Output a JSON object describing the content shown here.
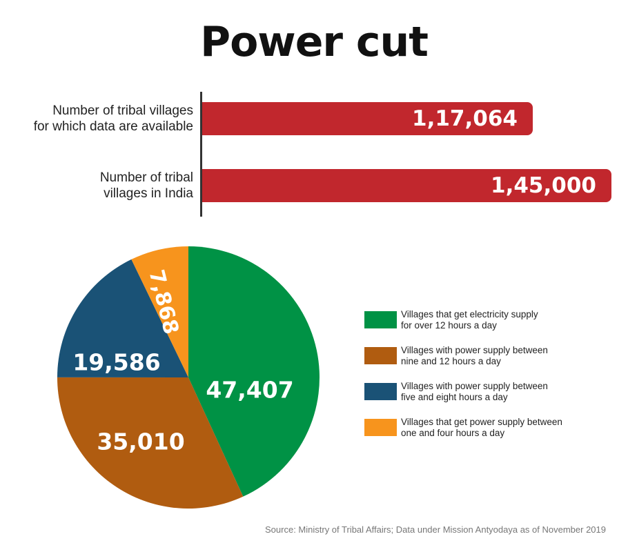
{
  "title": "Power cut",
  "bars": [
    {
      "label_lines": [
        "Number of tribal villages",
        "for which data are available"
      ],
      "value": 117064,
      "value_label": "1,17,064"
    },
    {
      "label_lines": [
        "Number of tribal",
        "villages in India"
      ],
      "value": 145000,
      "value_label": "1,45,000"
    }
  ],
  "legend": [
    {
      "lines": [
        "Villages that get electricity supply",
        "for over 12 hours a day"
      ],
      "color": "#009245"
    },
    {
      "lines": [
        "Villages with power supply between",
        "nine and 12 hours a day"
      ],
      "color": "#b05c10"
    },
    {
      "lines": [
        "Villages with power supply between",
        "five and eight hours a day"
      ],
      "color": "#1a5276"
    },
    {
      "lines": [
        "Villages that get power supply between",
        "one and four hours a day"
      ],
      "color": "#f7941d"
    }
  ],
  "source": "Source: Ministry of Tribal Affairs; Data under Mission Antyodaya as of November 2019",
  "chart_data": [
    {
      "type": "bar",
      "orientation": "horizontal",
      "categories": [
        "Number of tribal villages for which data are available",
        "Number of tribal villages in India"
      ],
      "values": [
        117064,
        145000
      ],
      "value_labels": [
        "1,17,064",
        "1,45,000"
      ],
      "color": "#c1272d"
    },
    {
      "type": "pie",
      "categories": [
        "Villages that get electricity supply for over 12 hours a day",
        "Villages with power supply between nine and 12 hours a day",
        "Villages with power supply between five and eight hours a day",
        "Villages that get power supply between one and four hours a day"
      ],
      "values": [
        47407,
        35010,
        19586,
        7868
      ],
      "value_labels": [
        "47,407",
        "35,010",
        "19,586",
        "7,868"
      ],
      "colors": [
        "#009245",
        "#b05c10",
        "#1a5276",
        "#f7941d"
      ],
      "legend_position": "right"
    }
  ]
}
